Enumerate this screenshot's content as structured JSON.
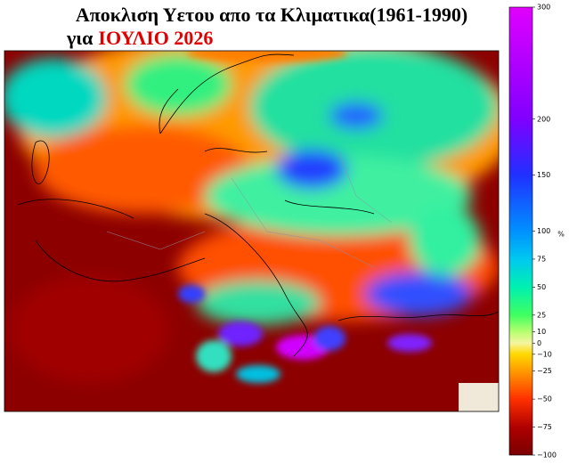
{
  "title": {
    "line1": "Αποκλιση Υετου απο τα Κλιματικα(1961-1990)",
    "prefix": "για",
    "highlight": "ΙΟΥΛΙΟ 2026"
  },
  "colorbar": {
    "unit": "%",
    "lim": [
      -100,
      300
    ],
    "ticks": [
      300,
      200,
      150,
      100,
      75,
      50,
      25,
      10,
      0,
      {
        "value": -10,
        "label": "−10"
      },
      {
        "value": -25,
        "label": "−25"
      },
      {
        "value": -50,
        "label": "−50"
      },
      {
        "value": -75,
        "label": "−75"
      },
      {
        "value": -100,
        "label": "−100"
      }
    ]
  }
}
